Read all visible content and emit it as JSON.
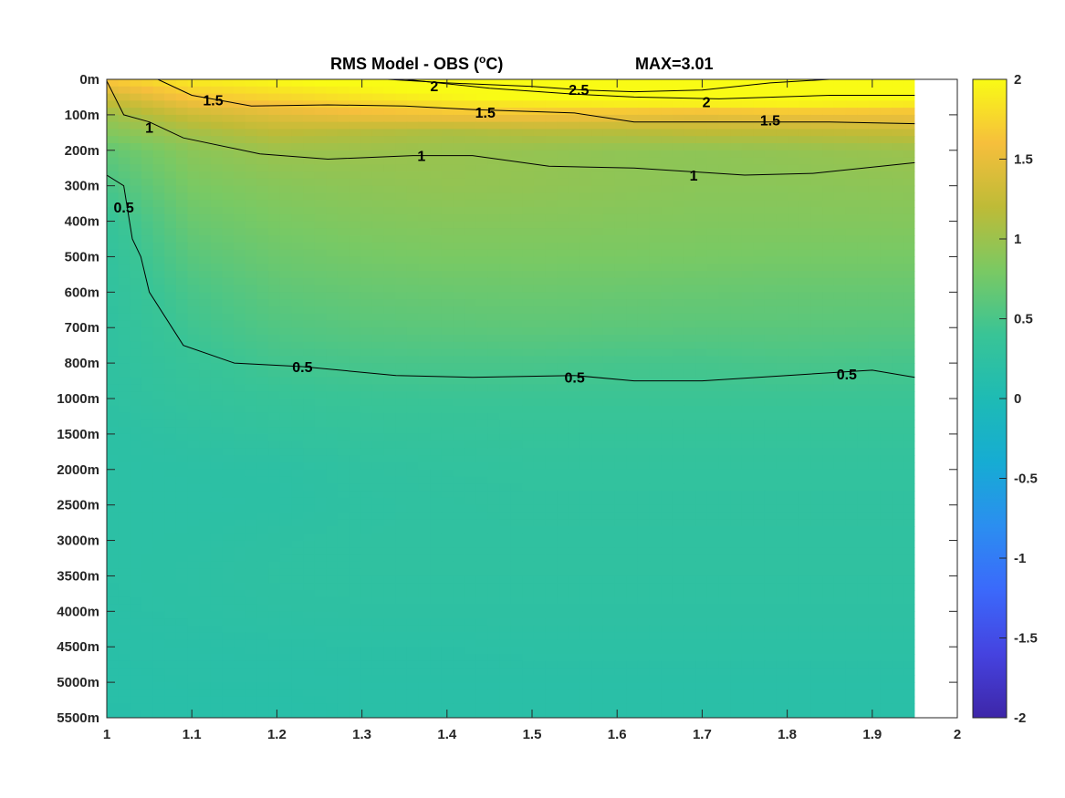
{
  "chart_data": {
    "type": "heatmap",
    "title": "RMS Model - OBS (",
    "title_superscript": "o",
    "title_suffix": "C)",
    "max_label": "MAX=3.01",
    "xlabel": "",
    "ylabel": "",
    "x_ticks": [
      "1",
      "1.1",
      "1.2",
      "1.3",
      "1.4",
      "1.5",
      "1.6",
      "1.7",
      "1.8",
      "1.9",
      "2"
    ],
    "xlim": [
      1,
      2
    ],
    "data_x_extent": [
      1,
      1.95
    ],
    "y_ticks": [
      "0m",
      "100m",
      "200m",
      "300m",
      "400m",
      "500m",
      "600m",
      "700m",
      "800m",
      "1000m",
      "1500m",
      "2000m",
      "2500m",
      "3000m",
      "3500m",
      "4000m",
      "4500m",
      "5000m",
      "5500m"
    ],
    "y_reversed": true,
    "colorbar": {
      "range": [
        -2,
        2
      ],
      "ticks": [
        "2",
        "1.5",
        "1",
        "0.5",
        "0",
        "-0.5",
        "-1",
        "-1.5",
        "-2"
      ],
      "colormap": "parula",
      "stops": [
        "#3e26a8",
        "#4543e0",
        "#3b69fb",
        "#2b8ef0",
        "#16acd3",
        "#1ebbb4",
        "#39c496",
        "#7ac963",
        "#bebb37",
        "#f6bf3c",
        "#f9fb15"
      ]
    },
    "columns_x": [
      1,
      1.1,
      1.2,
      1.3,
      1.4,
      1.5,
      1.6,
      1.7,
      1.8,
      1.95
    ],
    "rows_depth_index": [
      0,
      0.5,
      1,
      1.5,
      2,
      3,
      4,
      5,
      6,
      7,
      8,
      9,
      10,
      11,
      12,
      13,
      14,
      15,
      16,
      17,
      18
    ],
    "values": [
      [
        1.7,
        1.9,
        2.0,
        2.1,
        2.2,
        2.3,
        2.55,
        2.5,
        2.7,
        3.0
      ],
      [
        1.3,
        1.65,
        1.75,
        1.85,
        1.95,
        2.05,
        2.15,
        2.2,
        2.2,
        2.1
      ],
      [
        1.0,
        1.3,
        1.45,
        1.55,
        1.6,
        1.6,
        1.55,
        1.5,
        1.55,
        1.55
      ],
      [
        0.85,
        1.05,
        1.2,
        1.15,
        1.1,
        1.15,
        1.15,
        1.2,
        1.2,
        1.25
      ],
      [
        0.65,
        0.9,
        1.0,
        1.0,
        0.98,
        0.96,
        0.93,
        0.92,
        0.95,
        1.0
      ],
      [
        0.5,
        0.8,
        0.88,
        0.92,
        0.95,
        0.94,
        0.92,
        0.9,
        0.9,
        0.92
      ],
      [
        0.35,
        0.7,
        0.8,
        0.85,
        0.87,
        0.87,
        0.86,
        0.85,
        0.85,
        0.86
      ],
      [
        0.3,
        0.6,
        0.72,
        0.77,
        0.8,
        0.8,
        0.8,
        0.79,
        0.78,
        0.78
      ],
      [
        0.28,
        0.5,
        0.63,
        0.68,
        0.7,
        0.71,
        0.7,
        0.69,
        0.68,
        0.68
      ],
      [
        0.27,
        0.44,
        0.55,
        0.6,
        0.62,
        0.63,
        0.62,
        0.61,
        0.61,
        0.6
      ],
      [
        0.26,
        0.37,
        0.46,
        0.49,
        0.5,
        0.5,
        0.48,
        0.48,
        0.5,
        0.48
      ],
      [
        0.25,
        0.32,
        0.37,
        0.4,
        0.41,
        0.41,
        0.41,
        0.41,
        0.41,
        0.41
      ],
      [
        0.21,
        0.26,
        0.3,
        0.33,
        0.34,
        0.35,
        0.35,
        0.35,
        0.35,
        0.35
      ],
      [
        0.2,
        0.21,
        0.22,
        0.27,
        0.29,
        0.3,
        0.3,
        0.3,
        0.3,
        0.3
      ],
      [
        0.2,
        0.2,
        0.21,
        0.25,
        0.27,
        0.28,
        0.28,
        0.28,
        0.28,
        0.28
      ],
      [
        0.2,
        0.21,
        0.24,
        0.26,
        0.27,
        0.27,
        0.27,
        0.27,
        0.27,
        0.27
      ],
      [
        0.2,
        0.22,
        0.25,
        0.26,
        0.26,
        0.26,
        0.26,
        0.26,
        0.26,
        0.26
      ],
      [
        0.19,
        0.21,
        0.23,
        0.24,
        0.24,
        0.24,
        0.24,
        0.24,
        0.24,
        0.24
      ],
      [
        0.17,
        0.18,
        0.19,
        0.2,
        0.2,
        0.21,
        0.21,
        0.21,
        0.21,
        0.21
      ],
      [
        0.16,
        0.17,
        0.17,
        0.18,
        0.18,
        0.18,
        0.18,
        0.18,
        0.18,
        0.18
      ],
      [
        0.15,
        0.16,
        0.16,
        0.17,
        0.17,
        0.17,
        0.17,
        0.17,
        0.17,
        0.17
      ]
    ],
    "contours": [
      {
        "level": "2.5",
        "points": [
          [
            1.33,
            0.0
          ],
          [
            1.4,
            0.1
          ],
          [
            1.5,
            0.2
          ],
          [
            1.56,
            0.3
          ],
          [
            1.62,
            0.35
          ],
          [
            1.7,
            0.3
          ],
          [
            1.78,
            0.1
          ],
          [
            1.85,
            0.0
          ]
        ]
      },
      {
        "level": "2",
        "points": [
          [
            1.35,
            0.0
          ],
          [
            1.45,
            0.25
          ],
          [
            1.55,
            0.42
          ],
          [
            1.62,
            0.5
          ],
          [
            1.72,
            0.55
          ],
          [
            1.85,
            0.45
          ],
          [
            1.95,
            0.45
          ]
        ]
      },
      {
        "level": "1.5",
        "points": [
          [
            1.06,
            0.0
          ],
          [
            1.1,
            0.45
          ],
          [
            1.17,
            0.75
          ],
          [
            1.26,
            0.72
          ],
          [
            1.35,
            0.75
          ],
          [
            1.43,
            0.85
          ],
          [
            1.55,
            0.95
          ],
          [
            1.62,
            1.2
          ],
          [
            1.75,
            1.2
          ],
          [
            1.85,
            1.2
          ],
          [
            1.95,
            1.25
          ]
        ]
      },
      {
        "level": "1",
        "points": [
          [
            1.0,
            0.05
          ],
          [
            1.02,
            1.0
          ],
          [
            1.05,
            1.2
          ],
          [
            1.09,
            1.65
          ],
          [
            1.18,
            2.1
          ],
          [
            1.26,
            2.25
          ],
          [
            1.36,
            2.15
          ],
          [
            1.43,
            2.15
          ],
          [
            1.52,
            2.45
          ],
          [
            1.62,
            2.5
          ],
          [
            1.75,
            2.7
          ],
          [
            1.83,
            2.65
          ],
          [
            1.95,
            2.35
          ]
        ]
      },
      {
        "level": "0.5",
        "points": [
          [
            1.0,
            2.7
          ],
          [
            1.02,
            3.0
          ],
          [
            1.03,
            4.5
          ],
          [
            1.04,
            5.0
          ],
          [
            1.05,
            6.0
          ],
          [
            1.09,
            7.5
          ],
          [
            1.15,
            8.0
          ],
          [
            1.23,
            8.1
          ],
          [
            1.34,
            8.35
          ],
          [
            1.43,
            8.4
          ],
          [
            1.55,
            8.35
          ],
          [
            1.62,
            8.5
          ],
          [
            1.7,
            8.5
          ],
          [
            1.8,
            8.35
          ],
          [
            1.9,
            8.2
          ],
          [
            1.95,
            8.4
          ]
        ]
      }
    ],
    "contour_labels": [
      {
        "text": "2.5",
        "x": 1.555,
        "y": 0.28
      },
      {
        "text": "2",
        "x": 1.385,
        "y": 0.18
      },
      {
        "text": "2",
        "x": 1.705,
        "y": 0.63
      },
      {
        "text": "1.5",
        "x": 1.125,
        "y": 0.58
      },
      {
        "text": "1.5",
        "x": 1.445,
        "y": 0.92
      },
      {
        "text": "1.5",
        "x": 1.78,
        "y": 1.15
      },
      {
        "text": "1",
        "x": 1.05,
        "y": 1.35
      },
      {
        "text": "1",
        "x": 1.37,
        "y": 2.15
      },
      {
        "text": "1",
        "x": 1.69,
        "y": 2.7
      },
      {
        "text": "0.5",
        "x": 1.02,
        "y": 3.6
      },
      {
        "text": "0.5",
        "x": 1.23,
        "y": 8.1
      },
      {
        "text": "0.5",
        "x": 1.55,
        "y": 8.4
      },
      {
        "text": "0.5",
        "x": 1.87,
        "y": 8.3
      }
    ]
  }
}
